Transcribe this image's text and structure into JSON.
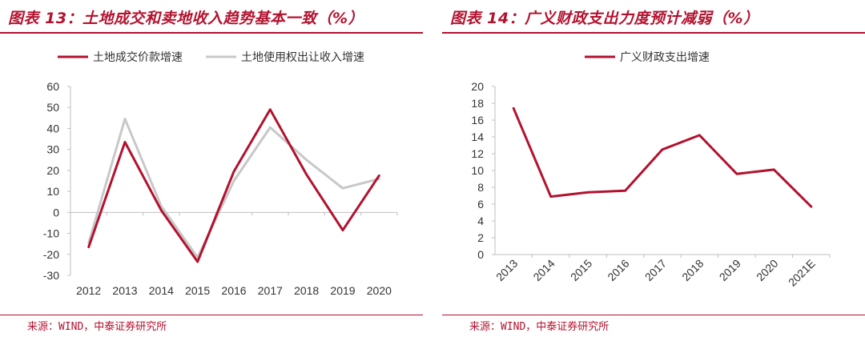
{
  "charts": [
    {
      "title": "图表 13：土地成交和卖地收入趋势基本一致（%）",
      "source": "来源：WIND，中泰证券研究所",
      "colors": {
        "accent": "#b3122f",
        "series_1": "#b3122f",
        "series_2": "#c8c8c8"
      }
    },
    {
      "title": "图表 14：广义财政支出力度预计减弱（%）",
      "source": "来源：WIND，中泰证券研究所",
      "colors": {
        "accent": "#b3122f",
        "series_1": "#b3122f"
      }
    }
  ],
  "chart_data": [
    {
      "type": "line",
      "categories": [
        "2012",
        "2013",
        "2014",
        "2015",
        "2016",
        "2017",
        "2018",
        "2019",
        "2020"
      ],
      "series": [
        {
          "name": "土地成交价款增速",
          "values": [
            -16.5,
            33.5,
            1.0,
            -23.5,
            19.5,
            49.0,
            18.0,
            -8.5,
            17.5
          ]
        },
        {
          "name": "土地使用权出让收入增速",
          "values": [
            -14.5,
            44.5,
            3.0,
            -21.5,
            15.0,
            40.5,
            25.0,
            11.5,
            16.0
          ]
        }
      ],
      "yticks": [
        "60",
        "50",
        "40",
        "30",
        "20",
        "10",
        "0",
        "-10",
        "-20",
        "-30"
      ],
      "ylim": [
        -30,
        60
      ],
      "legend_position": "top",
      "grid": false
    },
    {
      "type": "line",
      "categories": [
        "2013",
        "2014",
        "2015",
        "2016",
        "2017",
        "2018",
        "2019",
        "2020",
        "2021E"
      ],
      "series": [
        {
          "name": "广义财政支出增速",
          "values": [
            17.4,
            6.9,
            7.4,
            7.6,
            12.5,
            14.2,
            9.6,
            10.1,
            5.7
          ]
        }
      ],
      "yticks": [
        "20",
        "18",
        "16",
        "14",
        "12",
        "10",
        "8",
        "6",
        "4",
        "2",
        "0"
      ],
      "ylim": [
        0,
        20
      ],
      "legend_position": "top",
      "grid": false
    }
  ]
}
